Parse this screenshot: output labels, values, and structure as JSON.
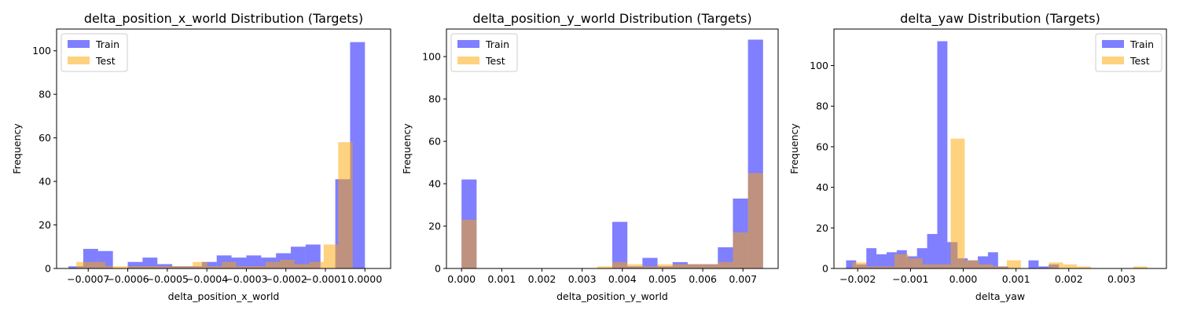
{
  "colors": {
    "train": "#0000ff",
    "test": "#ffa500",
    "train_alpha": 0.5,
    "test_alpha": 0.5
  },
  "chart_data": [
    {
      "type": "bar",
      "title": "delta_position_x_world Distribution (Targets)",
      "xlabel": "delta_position_x_world",
      "ylabel": "Frequency",
      "xlim": [
        -0.00078,
        6.5e-05
      ],
      "ylim": [
        0,
        110
      ],
      "xticks": [
        -0.0007,
        -0.0006,
        -0.0005,
        -0.0004,
        -0.0003,
        -0.0002,
        -0.0001,
        0.0
      ],
      "xtick_labels": [
        "−0.0007",
        "−0.0006",
        "−0.0005",
        "−0.0004",
        "−0.0003",
        "−0.0002",
        "−0.0001",
        "0.0000"
      ],
      "yticks": [
        0,
        20,
        40,
        60,
        80,
        100
      ],
      "ytick_labels": [
        "0",
        "20",
        "40",
        "60",
        "80",
        "100"
      ],
      "legend": {
        "position": "top-left",
        "entries": [
          "Train",
          "Test"
        ]
      },
      "series": [
        {
          "name": "Train",
          "bin_start": -0.00075,
          "bin_width": 3.75e-05,
          "values": [
            1,
            9,
            8,
            0,
            3,
            5,
            2,
            1,
            1,
            3,
            6,
            5,
            6,
            5,
            7,
            10,
            11,
            0,
            41,
            104
          ]
        },
        {
          "name": "Test",
          "bin_start": -0.00073,
          "bin_width": 3.68e-05,
          "values": [
            3,
            3,
            1,
            1,
            1,
            1,
            1,
            1,
            3,
            1,
            3,
            1,
            1,
            3,
            4,
            2,
            3,
            11,
            58
          ]
        }
      ]
    },
    {
      "type": "bar",
      "title": "delta_position_y_world Distribution (Targets)",
      "xlabel": "delta_position_y_world",
      "ylabel": "Frequency",
      "xlim": [
        -0.000375,
        0.007875
      ],
      "ylim": [
        0,
        113
      ],
      "xticks": [
        0.0,
        0.001,
        0.002,
        0.003,
        0.004,
        0.005,
        0.006,
        0.007
      ],
      "xtick_labels": [
        "0.000",
        "0.001",
        "0.002",
        "0.003",
        "0.004",
        "0.005",
        "0.006",
        "0.007"
      ],
      "yticks": [
        0,
        20,
        40,
        60,
        80,
        100
      ],
      "ytick_labels": [
        "0",
        "20",
        "40",
        "60",
        "80",
        "100"
      ],
      "legend": {
        "position": "top-left",
        "entries": [
          "Train",
          "Test"
        ]
      },
      "series": [
        {
          "name": "Train",
          "bin_start": 0.0,
          "bin_width": 0.000375,
          "values": [
            42,
            0,
            0,
            0,
            0,
            0,
            0,
            0,
            0,
            0,
            22,
            1,
            5,
            1,
            3,
            2,
            2,
            10,
            33,
            108
          ]
        },
        {
          "name": "Test",
          "bin_start": 0.0,
          "bin_width": 0.000375,
          "values": [
            23,
            0,
            0,
            0,
            0,
            0,
            0,
            0,
            0,
            1,
            3,
            2,
            1,
            2,
            2,
            2,
            2,
            3,
            17,
            45
          ]
        }
      ]
    },
    {
      "type": "bar",
      "title": "delta_yaw Distribution (Targets)",
      "xlabel": "delta_yaw",
      "ylabel": "Frequency",
      "xlim": [
        -0.00245,
        0.00385
      ],
      "ylim": [
        0,
        118
      ],
      "xticks": [
        -0.002,
        -0.001,
        0.0,
        0.001,
        0.002,
        0.003
      ],
      "xtick_labels": [
        "−0.002",
        "−0.001",
        "0.000",
        "0.001",
        "0.002",
        "0.003"
      ],
      "yticks": [
        0,
        20,
        40,
        60,
        80,
        100
      ],
      "ytick_labels": [
        "0",
        "20",
        "40",
        "60",
        "80",
        "100"
      ],
      "legend": {
        "position": "top-right",
        "entries": [
          "Train",
          "Test"
        ]
      },
      "series": [
        {
          "name": "Train",
          "bin_start": -0.00222,
          "bin_width": 0.000192,
          "values": [
            4,
            2,
            10,
            7,
            8,
            9,
            6,
            10,
            17,
            112,
            13,
            5,
            4,
            6,
            8,
            1,
            0,
            0,
            4,
            1,
            2
          ]
        },
        {
          "name": "Test",
          "bin_start": -0.0021,
          "bin_width": 0.000266,
          "values": [
            3,
            1,
            1,
            7,
            5,
            2,
            2,
            64,
            4,
            2,
            1,
            4,
            0,
            0,
            3,
            2,
            1,
            0,
            0,
            0,
            1
          ]
        }
      ]
    }
  ]
}
